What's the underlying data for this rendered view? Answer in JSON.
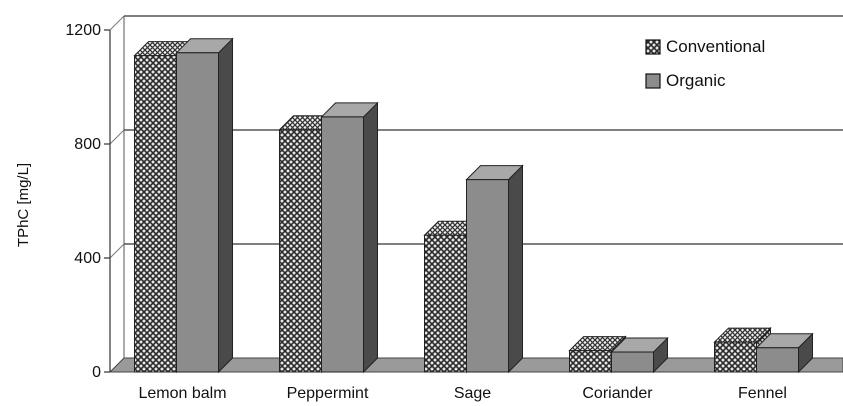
{
  "chart_data": {
    "type": "bar",
    "title": "",
    "xlabel": "",
    "ylabel": "TPhC [mg/L]",
    "ylim": [
      0,
      1200
    ],
    "yticks": [
      "0",
      "400",
      "800",
      "1200"
    ],
    "grid": true,
    "legend_position": "top-right",
    "categories": [
      "Lemon balm",
      "Peppermint",
      "Sage",
      "Coriander",
      "Fennel"
    ],
    "series": [
      {
        "name": "Conventional",
        "values": [
          1110,
          850,
          480,
          75,
          105
        ],
        "color": "#3a3a3a",
        "pattern": "crosshatch"
      },
      {
        "name": "Organic",
        "values": [
          1120,
          895,
          675,
          70,
          85
        ],
        "color": "#8c8c8c",
        "pattern": "solid"
      }
    ]
  }
}
